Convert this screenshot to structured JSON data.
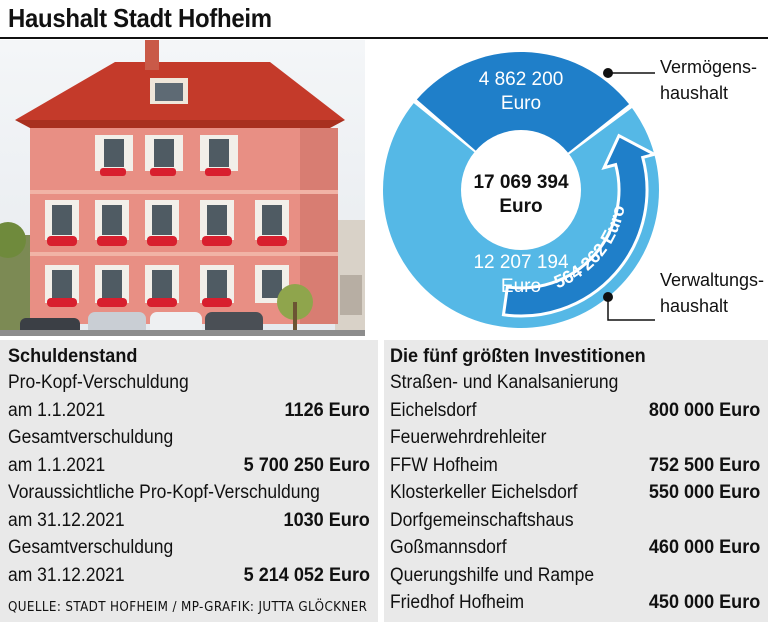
{
  "title": "Haushalt Stadt Hofheim",
  "photo": {
    "subject": "Rathaus Hofheim"
  },
  "chart_data": {
    "type": "pie",
    "style": "donut",
    "title": "",
    "center_label": "17 069 394\nEuro",
    "center_value": 17069394,
    "slices": [
      {
        "name": "Vermögenshaushalt",
        "value": 4862200,
        "label": "4 862 200\nEuro",
        "color": "#1f7fc9"
      },
      {
        "name": "Verwaltungshaushalt",
        "value": 12207194,
        "label": "12 207 194\nEuro",
        "color": "#55b8e6"
      }
    ],
    "callouts": [
      "Vermögens-\nhaushalt",
      "Verwaltungs-\nhaushalt"
    ],
    "transfer": {
      "value": 564262,
      "label": "564 262 Euro",
      "direction": "Verwaltungshaushalt → Vermögenshaushalt"
    }
  },
  "debt": {
    "heading": "Schuldenstand",
    "rows": [
      {
        "label": "Pro-Kopf-Verschuldung",
        "value": ""
      },
      {
        "label": "am 1.1.2021",
        "value": "1126 Euro"
      },
      {
        "label": "Gesamtverschuldung",
        "value": ""
      },
      {
        "label": "am 1.1.2021",
        "value": "5 700 250 Euro"
      },
      {
        "label": "Voraussichtliche Pro-Kopf-Verschuldung",
        "value": ""
      },
      {
        "label": "am 31.12.2021",
        "value": "1030 Euro"
      },
      {
        "label": "Gesamtverschuldung",
        "value": ""
      },
      {
        "label": "am 31.12.2021",
        "value": "5 214 052 Euro"
      }
    ]
  },
  "investments": {
    "heading": "Die fünf größten Investitionen",
    "rows": [
      {
        "label": "Straßen- und Kanalsanierung",
        "value": ""
      },
      {
        "label": "Eichelsdorf",
        "value": "800 000 Euro"
      },
      {
        "label": "Feuerwehrdrehleiter",
        "value": ""
      },
      {
        "label": "FFW Hofheim",
        "value": "752 500 Euro"
      },
      {
        "label": "Klosterkeller Eichelsdorf",
        "value": "550 000 Euro"
      },
      {
        "label": "Dorfgemeinschaftshaus",
        "value": ""
      },
      {
        "label": "Goßmannsdorf",
        "value": "460 000 Euro"
      },
      {
        "label": "Querungshilfe und Rampe",
        "value": ""
      },
      {
        "label": "Friedhof Hofheim",
        "value": "450 000 Euro"
      }
    ]
  },
  "source": "QUELLE: STADT HOFHEIM / MP-GRAFIK: JUTTA GLÖCKNER"
}
